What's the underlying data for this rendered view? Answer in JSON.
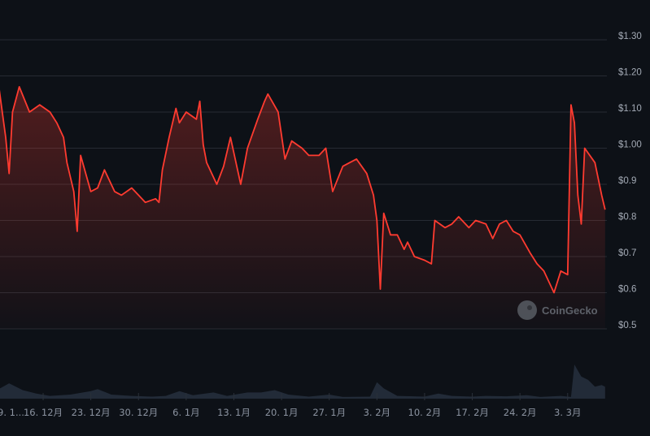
{
  "watermark": "CoinGecko",
  "colors": {
    "background": "#0d1117",
    "line": "#ff3b30",
    "grid": "#262b33",
    "volume": "#222b38",
    "label": "#a3aab5"
  },
  "chart_data": {
    "type": "line",
    "ylabel": "",
    "xlabel": "",
    "ylim": [
      0.5,
      1.3
    ],
    "grid": true,
    "y_ticks": [
      "$0.5",
      "$0.6",
      "$0.7",
      "$0.8",
      "$0.9",
      "$1.00",
      "$1.10",
      "$1.20",
      "$1.30"
    ],
    "y_tick_values": [
      0.5,
      0.6,
      0.7,
      0.8,
      0.9,
      1.0,
      1.1,
      1.2,
      1.3
    ],
    "x_ticks": [
      {
        "date": "2024-12-09",
        "label": "9. 1..."
      },
      {
        "date": "2024-12-16",
        "label": "16. 12月"
      },
      {
        "date": "2024-12-23",
        "label": "23. 12月"
      },
      {
        "date": "2024-12-30",
        "label": "30. 12月"
      },
      {
        "date": "2025-01-06",
        "label": "6. 1月"
      },
      {
        "date": "2025-01-13",
        "label": "13. 1月"
      },
      {
        "date": "2025-01-20",
        "label": "20. 1月"
      },
      {
        "date": "2025-01-27",
        "label": "27. 1月"
      },
      {
        "date": "2025-02-03",
        "label": "3. 2月"
      },
      {
        "date": "2025-02-10",
        "label": "10. 2月"
      },
      {
        "date": "2025-02-17",
        "label": "17. 2月"
      },
      {
        "date": "2025-02-24",
        "label": "24. 2月"
      },
      {
        "date": "2025-03-03",
        "label": "3. 3月"
      }
    ],
    "x_range": [
      "2024-12-09T16:00",
      "2025-03-09T00:00"
    ],
    "price_series": [
      [
        "2024-12-09T12:00",
        1.17
      ],
      [
        "2024-12-10T12:00",
        1.03
      ],
      [
        "2024-12-11T00:00",
        0.93
      ],
      [
        "2024-12-11T12:00",
        1.1
      ],
      [
        "2024-12-12T12:00",
        1.17
      ],
      [
        "2024-12-14T00:00",
        1.1
      ],
      [
        "2024-12-15T12:00",
        1.12
      ],
      [
        "2024-12-17T00:00",
        1.1
      ],
      [
        "2024-12-18T00:00",
        1.07
      ],
      [
        "2024-12-19T00:00",
        1.03
      ],
      [
        "2024-12-19T12:00",
        0.96
      ],
      [
        "2024-12-20T12:00",
        0.88
      ],
      [
        "2024-12-21T00:00",
        0.77
      ],
      [
        "2024-12-21T12:00",
        0.98
      ],
      [
        "2024-12-23T00:00",
        0.88
      ],
      [
        "2024-12-24T00:00",
        0.89
      ],
      [
        "2024-12-25T00:00",
        0.94
      ],
      [
        "2024-12-26T12:00",
        0.88
      ],
      [
        "2024-12-27T12:00",
        0.87
      ],
      [
        "2024-12-29T00:00",
        0.89
      ],
      [
        "2024-12-30T00:00",
        0.87
      ],
      [
        "2024-12-31T00:00",
        0.85
      ],
      [
        "2025-01-01T12:00",
        0.86
      ],
      [
        "2025-01-02T00:00",
        0.85
      ],
      [
        "2025-01-02T12:00",
        0.94
      ],
      [
        "2025-01-03T12:00",
        1.03
      ],
      [
        "2025-01-04T12:00",
        1.11
      ],
      [
        "2025-01-05T00:00",
        1.07
      ],
      [
        "2025-01-06T00:00",
        1.1
      ],
      [
        "2025-01-07T12:00",
        1.08
      ],
      [
        "2025-01-08T00:00",
        1.13
      ],
      [
        "2025-01-08T12:00",
        1.01
      ],
      [
        "2025-01-09T00:00",
        0.96
      ],
      [
        "2025-01-10T12:00",
        0.9
      ],
      [
        "2025-01-11T12:00",
        0.95
      ],
      [
        "2025-01-12T12:00",
        1.03
      ],
      [
        "2025-01-14T00:00",
        0.9
      ],
      [
        "2025-01-15T00:00",
        1.0
      ],
      [
        "2025-01-16T12:00",
        1.08
      ],
      [
        "2025-01-17T12:00",
        1.13
      ],
      [
        "2025-01-18T00:00",
        1.15
      ],
      [
        "2025-01-19T12:00",
        1.1
      ],
      [
        "2025-01-20T12:00",
        0.97
      ],
      [
        "2025-01-21T12:00",
        1.02
      ],
      [
        "2025-01-23T00:00",
        1.0
      ],
      [
        "2025-01-24T00:00",
        0.98
      ],
      [
        "2025-01-25T12:00",
        0.98
      ],
      [
        "2025-01-26T12:00",
        1.0
      ],
      [
        "2025-01-27T12:00",
        0.88
      ],
      [
        "2025-01-29T00:00",
        0.95
      ],
      [
        "2025-01-30T00:00",
        0.96
      ],
      [
        "2025-01-31T00:00",
        0.97
      ],
      [
        "2025-02-01T12:00",
        0.93
      ],
      [
        "2025-02-02T12:00",
        0.87
      ],
      [
        "2025-02-03T00:00",
        0.8
      ],
      [
        "2025-02-03T12:00",
        0.61
      ],
      [
        "2025-02-04T00:00",
        0.82
      ],
      [
        "2025-02-05T00:00",
        0.76
      ],
      [
        "2025-02-06T00:00",
        0.76
      ],
      [
        "2025-02-07T00:00",
        0.72
      ],
      [
        "2025-02-07T12:00",
        0.74
      ],
      [
        "2025-02-08T12:00",
        0.7
      ],
      [
        "2025-02-10T00:00",
        0.69
      ],
      [
        "2025-02-11T00:00",
        0.68
      ],
      [
        "2025-02-11T12:00",
        0.8
      ],
      [
        "2025-02-13T00:00",
        0.78
      ],
      [
        "2025-02-14T00:00",
        0.79
      ],
      [
        "2025-02-15T00:00",
        0.81
      ],
      [
        "2025-02-16T12:00",
        0.78
      ],
      [
        "2025-02-17T12:00",
        0.8
      ],
      [
        "2025-02-19T00:00",
        0.79
      ],
      [
        "2025-02-20T00:00",
        0.75
      ],
      [
        "2025-02-21T00:00",
        0.79
      ],
      [
        "2025-02-22T00:00",
        0.8
      ],
      [
        "2025-02-23T00:00",
        0.77
      ],
      [
        "2025-02-24T00:00",
        0.76
      ],
      [
        "2025-02-25T12:00",
        0.71
      ],
      [
        "2025-02-26T12:00",
        0.68
      ],
      [
        "2025-02-27T12:00",
        0.66
      ],
      [
        "2025-03-01T00:00",
        0.6
      ],
      [
        "2025-03-02T00:00",
        0.66
      ],
      [
        "2025-03-03T00:00",
        0.65
      ],
      [
        "2025-03-03T12:00",
        1.12
      ],
      [
        "2025-03-04T00:00",
        1.07
      ],
      [
        "2025-03-04T12:00",
        0.87
      ],
      [
        "2025-03-05T00:00",
        0.79
      ],
      [
        "2025-03-05T12:00",
        1.0
      ],
      [
        "2025-03-07T00:00",
        0.96
      ],
      [
        "2025-03-08T00:00",
        0.87
      ],
      [
        "2025-03-08T12:00",
        0.83
      ]
    ],
    "volume_relative": [
      [
        "2024-12-09T12:00",
        30
      ],
      [
        "2024-12-11T00:00",
        45
      ],
      [
        "2024-12-13T00:00",
        25
      ],
      [
        "2024-12-15T00:00",
        15
      ],
      [
        "2024-12-17T00:00",
        8
      ],
      [
        "2024-12-20T00:00",
        12
      ],
      [
        "2024-12-23T00:00",
        22
      ],
      [
        "2024-12-24T00:00",
        28
      ],
      [
        "2024-12-26T00:00",
        12
      ],
      [
        "2024-12-29T00:00",
        8
      ],
      [
        "2025-01-01T00:00",
        6
      ],
      [
        "2025-01-03T00:00",
        8
      ],
      [
        "2025-01-05T00:00",
        22
      ],
      [
        "2025-01-07T00:00",
        10
      ],
      [
        "2025-01-10T00:00",
        18
      ],
      [
        "2025-01-12T00:00",
        8
      ],
      [
        "2025-01-15T00:00",
        18
      ],
      [
        "2025-01-17T00:00",
        18
      ],
      [
        "2025-01-19T00:00",
        25
      ],
      [
        "2025-01-21T00:00",
        12
      ],
      [
        "2025-01-24T00:00",
        6
      ],
      [
        "2025-01-27T00:00",
        12
      ],
      [
        "2025-01-29T00:00",
        5
      ],
      [
        "2025-02-02T00:00",
        6
      ],
      [
        "2025-02-03T00:00",
        48
      ],
      [
        "2025-02-04T00:00",
        30
      ],
      [
        "2025-02-06T00:00",
        8
      ],
      [
        "2025-02-10T00:00",
        6
      ],
      [
        "2025-02-12T00:00",
        15
      ],
      [
        "2025-02-14T00:00",
        8
      ],
      [
        "2025-02-17T00:00",
        6
      ],
      [
        "2025-02-19T00:00",
        8
      ],
      [
        "2025-02-22T00:00",
        7
      ],
      [
        "2025-02-25T00:00",
        10
      ],
      [
        "2025-02-27T00:00",
        5
      ],
      [
        "2025-03-02T00:00",
        8
      ],
      [
        "2025-03-03T12:00",
        5
      ],
      [
        "2025-03-04T00:00",
        100
      ],
      [
        "2025-03-05T00:00",
        65
      ],
      [
        "2025-03-06T00:00",
        55
      ],
      [
        "2025-03-07T00:00",
        35
      ],
      [
        "2025-03-08T00:00",
        40
      ],
      [
        "2025-03-08T12:00",
        35
      ]
    ]
  }
}
